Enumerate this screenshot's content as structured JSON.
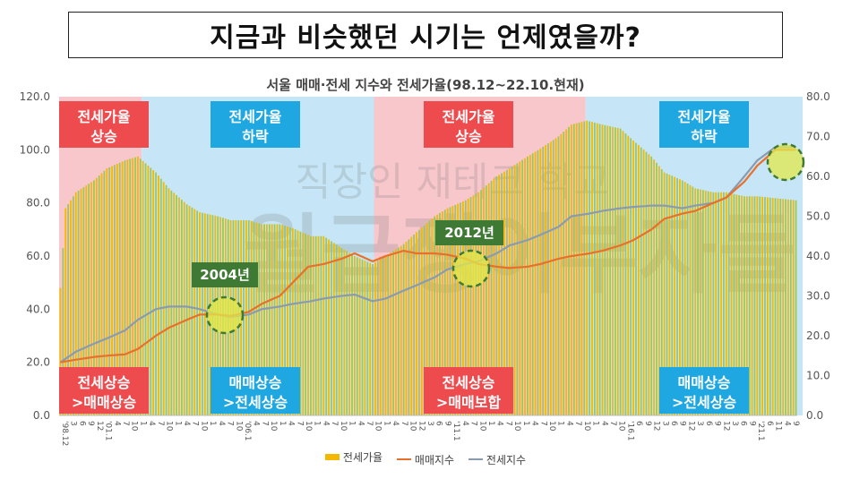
{
  "headline": "지금과 비슷했던 시기는 언제였을까?",
  "subtitle": "서울 매매·전세 지수와 전세가율(98.12~22.10.현재)",
  "watermark": {
    "line1": "직장인 재테크 학교",
    "line2": "월급쟁이부자들"
  },
  "colors": {
    "bar": "#f5b800",
    "bar_alt": "#9cc75a",
    "sales_line": "#e8702a",
    "jeonse_line": "#8a9bb0",
    "red_zone": "#f8c7cc",
    "blue_zone": "#c6e6f7",
    "red_label": "#ee4b4f",
    "blue_label": "#1ea7e1",
    "callout_green": "#3f7a35",
    "highlight": "#e3e84a"
  },
  "phases": [
    {
      "name": "phase-1",
      "zone": "red",
      "top_label": [
        "전세가율",
        "상승"
      ],
      "bottom_label": [
        "전세상승",
        ">매매상승"
      ]
    },
    {
      "name": "phase-2",
      "zone": "blue",
      "top_label": [
        "전세가율",
        "하락"
      ],
      "bottom_label": [
        "매매상승",
        ">전세상승"
      ]
    },
    {
      "name": "phase-3",
      "zone": "red",
      "top_label": [
        "전세가율",
        "상승"
      ],
      "bottom_label": [
        "전세상승",
        ">매매보합"
      ]
    },
    {
      "name": "phase-4",
      "zone": "blue",
      "top_label": [
        "전세가율",
        "하락"
      ],
      "bottom_label": [
        "매매상승",
        ">전세상승"
      ]
    }
  ],
  "callouts": [
    {
      "label": "2004년"
    },
    {
      "label": "2012년"
    }
  ],
  "legend": [
    {
      "key": "ratio",
      "label": "전세가율"
    },
    {
      "key": "sales",
      "label": "매매지수"
    },
    {
      "key": "jeonse",
      "label": "전세지수"
    }
  ],
  "chart_data": {
    "type": "bar+line",
    "title": "서울 매매·전세 지수와 전세가율(98.12~22.10.현재)",
    "x_start": "1998-12",
    "x_end": "2022-09",
    "y_left": {
      "min": 0,
      "max": 120,
      "ticks": [
        "0.0",
        "20.0",
        "40.0",
        "60.0",
        "80.0",
        "100.0",
        "120.0"
      ]
    },
    "y_right": {
      "min": 0,
      "max": 80,
      "ticks": [
        "0.0",
        "10.0",
        "20.0",
        "30.0",
        "40.0",
        "50.0",
        "60.0",
        "70.0",
        "80.0"
      ]
    },
    "x_ticks": [
      "'98.12",
      "3",
      "6",
      "9",
      "12",
      "'01.1",
      "4",
      "7",
      "10",
      "1",
      "4",
      "7",
      "10",
      "1",
      "4",
      "7",
      "10",
      "1",
      "4",
      "7",
      "10",
      "'06.1",
      "4",
      "7",
      "10",
      "1",
      "4",
      "7",
      "10",
      "1",
      "4",
      "7",
      "10",
      "1",
      "4",
      "7",
      "10",
      "1",
      "4",
      "7",
      "10",
      "12",
      "3",
      "6",
      "9",
      "'11.1",
      "4",
      "7",
      "10",
      "1",
      "4",
      "7",
      "10",
      "1",
      "4",
      "7",
      "10",
      "1",
      "4",
      "7",
      "10",
      "1",
      "4",
      "7",
      "10",
      "'16.1",
      "6",
      "9",
      "12",
      "3",
      "6",
      "9",
      "12",
      "3",
      "6",
      "9",
      "12",
      "3",
      "6",
      "9",
      "'21.1",
      "6",
      "11",
      "4",
      "9"
    ],
    "phase_ranges": [
      [
        "1998-12",
        "2001-08"
      ],
      [
        "2001-08",
        "2009-02"
      ],
      [
        "2009-02",
        "2015-12"
      ],
      [
        "2015-12",
        "2022-09"
      ]
    ],
    "ratio_keypoints": [
      [
        "1998-12",
        32
      ],
      [
        "1999-02",
        52
      ],
      [
        "1999-06",
        56
      ],
      [
        "2000-01",
        59
      ],
      [
        "2000-06",
        62
      ],
      [
        "2001-01",
        64
      ],
      [
        "2001-06",
        65
      ],
      [
        "2002-01",
        61
      ],
      [
        "2002-06",
        57
      ],
      [
        "2003-01",
        53
      ],
      [
        "2003-06",
        51
      ],
      [
        "2004-01",
        50
      ],
      [
        "2004-06",
        49
      ],
      [
        "2005-01",
        49
      ],
      [
        "2005-06",
        48
      ],
      [
        "2006-01",
        48
      ],
      [
        "2006-06",
        47
      ],
      [
        "2007-01",
        45
      ],
      [
        "2007-06",
        45
      ],
      [
        "2008-01",
        42
      ],
      [
        "2008-06",
        40
      ],
      [
        "2009-01",
        38
      ],
      [
        "2009-06",
        40
      ],
      [
        "2010-01",
        43
      ],
      [
        "2010-06",
        46
      ],
      [
        "2011-01",
        50
      ],
      [
        "2011-06",
        52
      ],
      [
        "2012-01",
        54
      ],
      [
        "2012-06",
        56
      ],
      [
        "2013-01",
        60
      ],
      [
        "2013-06",
        62
      ],
      [
        "2014-01",
        65
      ],
      [
        "2014-06",
        67
      ],
      [
        "2015-01",
        70
      ],
      [
        "2015-06",
        73
      ],
      [
        "2015-12",
        74
      ],
      [
        "2016-06",
        73
      ],
      [
        "2017-01",
        72
      ],
      [
        "2017-06",
        69
      ],
      [
        "2018-01",
        65
      ],
      [
        "2018-06",
        61
      ],
      [
        "2019-01",
        59
      ],
      [
        "2019-06",
        57
      ],
      [
        "2020-01",
        56
      ],
      [
        "2020-06",
        56
      ],
      [
        "2021-01",
        55
      ],
      [
        "2021-06",
        55
      ],
      [
        "2022-09",
        54
      ]
    ],
    "sales_keypoints": [
      [
        "1998-12",
        20
      ],
      [
        "1999-06",
        21
      ],
      [
        "2000-01",
        22
      ],
      [
        "2000-06",
        22.5
      ],
      [
        "2001-01",
        23
      ],
      [
        "2001-06",
        25
      ],
      [
        "2002-01",
        30
      ],
      [
        "2002-06",
        33
      ],
      [
        "2003-01",
        36
      ],
      [
        "2003-06",
        38
      ],
      [
        "2004-01",
        38
      ],
      [
        "2004-06",
        37.5
      ],
      [
        "2005-01",
        39
      ],
      [
        "2005-06",
        42
      ],
      [
        "2006-01",
        45
      ],
      [
        "2006-06",
        50
      ],
      [
        "2006-12",
        56
      ],
      [
        "2007-06",
        57
      ],
      [
        "2008-01",
        59
      ],
      [
        "2008-06",
        61
      ],
      [
        "2009-01",
        58
      ],
      [
        "2009-06",
        60
      ],
      [
        "2010-01",
        62
      ],
      [
        "2010-06",
        61
      ],
      [
        "2011-01",
        61
      ],
      [
        "2011-06",
        60.5
      ],
      [
        "2012-01",
        59
      ],
      [
        "2012-06",
        57
      ],
      [
        "2013-01",
        56
      ],
      [
        "2013-06",
        55.5
      ],
      [
        "2014-01",
        56
      ],
      [
        "2014-06",
        57
      ],
      [
        "2015-01",
        59
      ],
      [
        "2015-06",
        60
      ],
      [
        "2016-01",
        61
      ],
      [
        "2016-06",
        62
      ],
      [
        "2017-01",
        64
      ],
      [
        "2017-06",
        66
      ],
      [
        "2018-01",
        70
      ],
      [
        "2018-06",
        74
      ],
      [
        "2019-01",
        76
      ],
      [
        "2019-06",
        77
      ],
      [
        "2020-01",
        80
      ],
      [
        "2020-06",
        82
      ],
      [
        "2021-01",
        88
      ],
      [
        "2021-06",
        94
      ],
      [
        "2022-01",
        100
      ],
      [
        "2022-09",
        100
      ]
    ],
    "jeonse_keypoints": [
      [
        "1998-12",
        20
      ],
      [
        "1999-06",
        24
      ],
      [
        "2000-01",
        27
      ],
      [
        "2000-06",
        29
      ],
      [
        "2001-01",
        32
      ],
      [
        "2001-06",
        36
      ],
      [
        "2002-01",
        40
      ],
      [
        "2002-06",
        41
      ],
      [
        "2003-01",
        41
      ],
      [
        "2003-06",
        40
      ],
      [
        "2004-01",
        38
      ],
      [
        "2004-06",
        37
      ],
      [
        "2005-01",
        38
      ],
      [
        "2005-06",
        40
      ],
      [
        "2006-01",
        41
      ],
      [
        "2006-06",
        42
      ],
      [
        "2007-01",
        43
      ],
      [
        "2007-06",
        44
      ],
      [
        "2008-01",
        45
      ],
      [
        "2008-06",
        45.5
      ],
      [
        "2009-01",
        43
      ],
      [
        "2009-06",
        44
      ],
      [
        "2010-01",
        47
      ],
      [
        "2010-06",
        49
      ],
      [
        "2011-01",
        52
      ],
      [
        "2011-06",
        55
      ],
      [
        "2012-01",
        57
      ],
      [
        "2012-06",
        58
      ],
      [
        "2013-01",
        61
      ],
      [
        "2013-06",
        64
      ],
      [
        "2014-01",
        66
      ],
      [
        "2014-06",
        68
      ],
      [
        "2015-01",
        71
      ],
      [
        "2015-06",
        75
      ],
      [
        "2016-01",
        76
      ],
      [
        "2016-06",
        77
      ],
      [
        "2017-01",
        78
      ],
      [
        "2017-06",
        78.5
      ],
      [
        "2018-01",
        79
      ],
      [
        "2018-06",
        79
      ],
      [
        "2019-01",
        78
      ],
      [
        "2019-06",
        79
      ],
      [
        "2020-01",
        80
      ],
      [
        "2020-06",
        82
      ],
      [
        "2021-01",
        90
      ],
      [
        "2021-06",
        96
      ],
      [
        "2022-01",
        101
      ],
      [
        "2022-09",
        101
      ]
    ]
  }
}
